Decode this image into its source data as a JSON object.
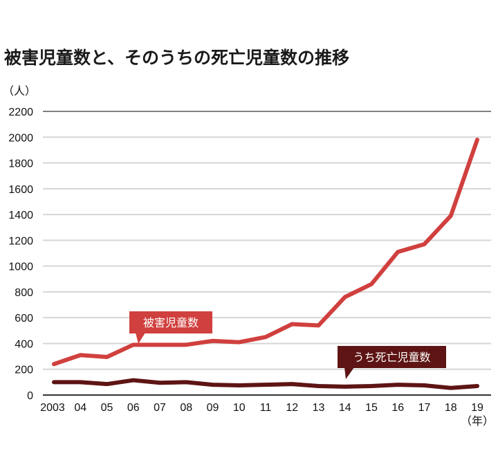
{
  "chart_data": {
    "type": "line",
    "title": "被害児童数と、そのうちの死亡児童数の推移",
    "ylabel": "（人）",
    "xlabel": "（年）",
    "ylim": [
      0,
      2200
    ],
    "yticks": [
      "0",
      "200",
      "400",
      "600",
      "800",
      "1000",
      "1200",
      "1400",
      "1600",
      "1800",
      "2000",
      "2200"
    ],
    "categories": [
      "2003",
      "04",
      "05",
      "06",
      "07",
      "08",
      "09",
      "10",
      "11",
      "12",
      "13",
      "14",
      "15",
      "16",
      "17",
      "18",
      "19"
    ],
    "grid": true,
    "series": [
      {
        "name": "被害児童数",
        "color": "#d0403e",
        "values": [
          240,
          310,
          295,
          390,
          390,
          390,
          420,
          410,
          450,
          550,
          540,
          760,
          860,
          1110,
          1170,
          1390,
          1980
        ]
      },
      {
        "name": "うち死亡児童数",
        "color": "#5e1414",
        "values": [
          100,
          100,
          85,
          115,
          95,
          100,
          80,
          75,
          80,
          85,
          70,
          65,
          70,
          80,
          75,
          55,
          70
        ]
      }
    ]
  }
}
